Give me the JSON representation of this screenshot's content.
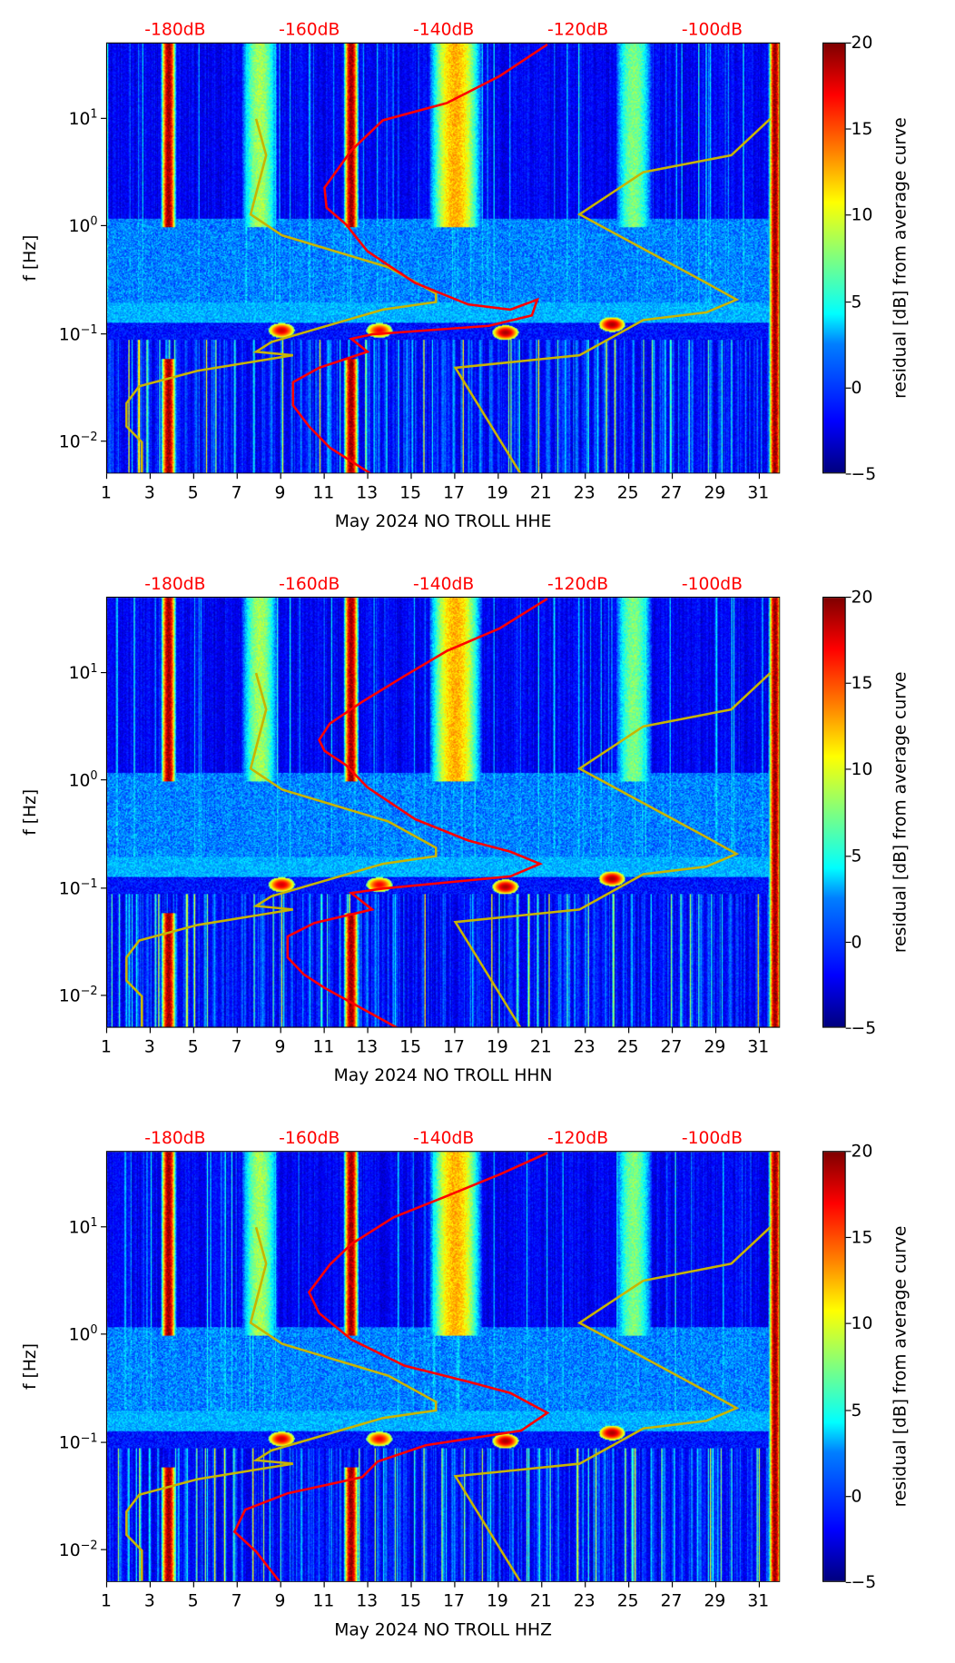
{
  "chart_data": [
    {
      "type": "heatmap",
      "title": "May 2024 NO TROLL  HHE",
      "xlabel": "May 2024 NO TROLL  HHE",
      "ylabel": "f [Hz]",
      "xlim": [
        1,
        32
      ],
      "ylim": [
        0.005,
        50
      ],
      "yscale": "log",
      "red_curve_db_vs_f": [
        [
          -124.7,
          49
        ],
        [
          -131.8,
          25
        ],
        [
          -139.7,
          14
        ],
        [
          -149.2,
          9.7
        ],
        [
          -153.9,
          5.1
        ],
        [
          -157.9,
          2.3
        ],
        [
          -157.6,
          1.5
        ],
        [
          -154.7,
          1.05
        ],
        [
          -151.5,
          0.59
        ],
        [
          -144.4,
          0.3
        ],
        [
          -136.5,
          0.19
        ],
        [
          -130.2,
          0.17
        ],
        [
          -126.2,
          0.21
        ],
        [
          -127,
          0.15
        ],
        [
          -133.4,
          0.12
        ],
        [
          -150.8,
          0.1
        ],
        [
          -153.9,
          0.091
        ],
        [
          -151.5,
          0.069
        ],
        [
          -158.7,
          0.049
        ],
        [
          -162.6,
          0.036
        ],
        [
          -162.6,
          0.022
        ],
        [
          -160.2,
          0.014
        ],
        [
          -157.1,
          0.0089
        ],
        [
          -150.8,
          0.005
        ]
      ]
    },
    {
      "type": "heatmap",
      "title": "May 2024 NO TROLL  HHN",
      "xlabel": "May 2024 NO TROLL  HHN",
      "ylabel": "f [Hz]",
      "xlim": [
        1,
        32
      ],
      "ylim": [
        0.005,
        50
      ],
      "yscale": "log",
      "red_curve_db_vs_f": [
        [
          -124.7,
          49
        ],
        [
          -131.8,
          26
        ],
        [
          -139.7,
          16
        ],
        [
          -146,
          9.4
        ],
        [
          -152.3,
          5.4
        ],
        [
          -157.1,
          3.4
        ],
        [
          -158.7,
          2.4
        ],
        [
          -157.9,
          1.9
        ],
        [
          -154.7,
          1.4
        ],
        [
          -151.5,
          0.87
        ],
        [
          -144.4,
          0.44
        ],
        [
          -136.5,
          0.28
        ],
        [
          -130.2,
          0.22
        ],
        [
          -125.8,
          0.17
        ],
        [
          -130.2,
          0.13
        ],
        [
          -149.2,
          0.1
        ],
        [
          -153.9,
          0.091
        ],
        [
          -150.8,
          0.064
        ],
        [
          -159.4,
          0.048
        ],
        [
          -163.4,
          0.036
        ],
        [
          -163.4,
          0.023
        ],
        [
          -161,
          0.016
        ],
        [
          -157.9,
          0.012
        ],
        [
          -146.8,
          0.005
        ]
      ]
    },
    {
      "type": "heatmap",
      "title": "May 2024 NO TROLL  HHZ",
      "xlabel": "May 2024 NO TROLL  HHZ",
      "ylabel": "f [Hz]",
      "xlim": [
        1,
        32
      ],
      "ylim": [
        0.005,
        50
      ],
      "yscale": "log",
      "red_curve_db_vs_f": [
        [
          -124.7,
          49
        ],
        [
          -131.8,
          31
        ],
        [
          -139.7,
          19.5
        ],
        [
          -147.6,
          12.4
        ],
        [
          -153.9,
          7
        ],
        [
          -157.1,
          4.5
        ],
        [
          -160.2,
          2.5
        ],
        [
          -158.7,
          1.6
        ],
        [
          -153.9,
          0.91
        ],
        [
          -146,
          0.52
        ],
        [
          -136.5,
          0.37
        ],
        [
          -130.2,
          0.29
        ],
        [
          -124.7,
          0.19
        ],
        [
          -128.6,
          0.13
        ],
        [
          -142.8,
          0.095
        ],
        [
          -150,
          0.067
        ],
        [
          -152.3,
          0.048
        ],
        [
          -163.4,
          0.034
        ],
        [
          -169.7,
          0.024
        ],
        [
          -171.3,
          0.015
        ],
        [
          -168.1,
          0.0098
        ],
        [
          -164.2,
          0.0048
        ]
      ]
    }
  ],
  "shared": {
    "x_ticks": [
      1,
      3,
      5,
      7,
      9,
      11,
      13,
      15,
      17,
      19,
      21,
      23,
      25,
      27,
      29,
      31
    ],
    "y_ticks": [
      {
        "value": 10,
        "base": "10",
        "exp": "1"
      },
      {
        "value": 1,
        "base": "10",
        "exp": "0"
      },
      {
        "value": 0.1,
        "base": "10",
        "exp": "−1"
      },
      {
        "value": 0.01,
        "base": "10",
        "exp": "−2"
      }
    ],
    "db_axis": {
      "ticks": [
        -180,
        -160,
        -140,
        -120,
        -100
      ],
      "labels": [
        "-180dB",
        "-160dB",
        "-140dB",
        "-120dB",
        "-100dB"
      ],
      "color": "#ff0000"
    },
    "colorbar": {
      "label": "residual [dB] from average curve",
      "ticks": [
        20,
        15,
        10,
        5,
        0,
        -5
      ],
      "tick_labels": [
        "20",
        "15",
        "10",
        "5",
        "0",
        "−5"
      ],
      "range": [
        -5,
        20
      ],
      "colormap": "jet"
    },
    "nlnm_db_vs_f": [
      [
        -168.1,
        10
      ],
      [
        -166.6,
        4.6
      ],
      [
        -168.9,
        1.3
      ],
      [
        -164.2,
        0.83
      ],
      [
        -148.4,
        0.42
      ],
      [
        -141.3,
        0.24
      ],
      [
        -141.3,
        0.2
      ],
      [
        -149.2,
        0.17
      ],
      [
        -165.8,
        0.085
      ],
      [
        -168.1,
        0.069
      ],
      [
        -162.6,
        0.064
      ],
      [
        -176.8,
        0.046
      ],
      [
        -185.5,
        0.033
      ],
      [
        -187.4,
        0.023
      ],
      [
        -187.4,
        0.014
      ],
      [
        -185.1,
        0.01
      ],
      [
        -185.1,
        0.005
      ]
    ],
    "nhnm_db_vs_f": [
      [
        -91.5,
        10
      ],
      [
        -97.3,
        4.6
      ],
      [
        -110.4,
        3.2
      ],
      [
        -119.9,
        1.3
      ],
      [
        -101,
        0.3
      ],
      [
        -96.5,
        0.21
      ],
      [
        -101,
        0.16
      ],
      [
        -110.4,
        0.136
      ],
      [
        -119.9,
        0.064
      ],
      [
        -138.4,
        0.049
      ],
      [
        -128.6,
        0.005
      ]
    ],
    "curve_colors": {
      "psd": "#ff0000",
      "noise_models": "#c8b400"
    },
    "events": [
      {
        "day": 3.8,
        "width": 0.35,
        "level": 20
      },
      {
        "day": 12.2,
        "width": 0.35,
        "level": 20
      },
      {
        "day": 8,
        "width": 0.8,
        "level": 9
      },
      {
        "day": 17,
        "width": 1.2,
        "level": 13
      },
      {
        "day": 25.2,
        "width": 0.8,
        "level": 8
      },
      {
        "day": 31.7,
        "width": 0.3,
        "level": 20
      }
    ],
    "blobs": [
      {
        "day": 9,
        "f": 0.11,
        "level": 18
      },
      {
        "day": 13.5,
        "f": 0.11,
        "level": 17
      },
      {
        "day": 19.3,
        "f": 0.105,
        "level": 19
      },
      {
        "day": 24.2,
        "f": 0.125,
        "level": 19
      }
    ]
  }
}
